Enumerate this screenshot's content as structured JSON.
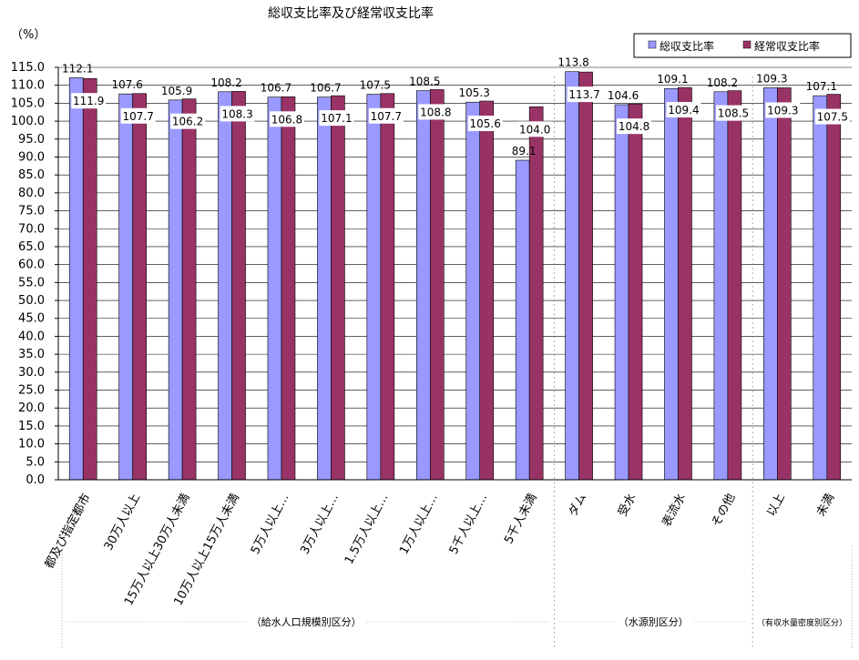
{
  "chart_data": {
    "type": "bar",
    "title": "総収支比率及び経常収支比率",
    "ylabel": "（%）",
    "ylim": [
      0,
      115
    ],
    "yticks": [
      "0.0",
      "5.0",
      "10.0",
      "15.0",
      "20.0",
      "25.0",
      "30.0",
      "35.0",
      "40.0",
      "45.0",
      "50.0",
      "55.0",
      "60.0",
      "65.0",
      "70.0",
      "75.0",
      "80.0",
      "85.0",
      "90.0",
      "95.0",
      "100.0",
      "105.0",
      "110.0",
      "115.0"
    ],
    "grid": true,
    "legend_position": "top-right",
    "categories": [
      "都及び指定都市",
      "30万人以上",
      "15万人以上30万人未満",
      "10万人以上15万人未満",
      "5万人以上…",
      "3万人以上…",
      "1.5万人以上…",
      "1万人以上…",
      "5千人以上…",
      "5千人未満",
      "ダム",
      "受水",
      "表流水",
      "その他",
      "以上",
      "未満"
    ],
    "series": [
      {
        "name": "総収支比率",
        "color": "#9999FF",
        "values": [
          112.1,
          107.6,
          105.9,
          108.2,
          106.7,
          106.7,
          107.5,
          108.5,
          105.3,
          89.1,
          113.8,
          104.6,
          109.1,
          108.2,
          109.3,
          107.1
        ],
        "labels": [
          "112.1",
          "107.6",
          "105.9",
          "108.2",
          "106.7",
          "106.7",
          "107.5",
          "108.5",
          "105.3",
          "89.1",
          "113.8",
          "104.6",
          "109.1",
          "108.2",
          "109.3",
          "107.1"
        ]
      },
      {
        "name": "経常収支比率",
        "color": "#993366",
        "values": [
          111.9,
          107.7,
          106.2,
          108.3,
          106.8,
          107.1,
          107.7,
          108.8,
          105.6,
          104.0,
          113.7,
          104.8,
          109.4,
          108.5,
          109.3,
          107.5
        ],
        "labels": [
          "111.9",
          "107.7",
          "106.2",
          "108.3",
          "106.8",
          "107.1",
          "107.7",
          "108.8",
          "105.6",
          "104.0",
          "113.7",
          "104.8",
          "109.4",
          "108.5",
          "109.3",
          "107.5"
        ]
      }
    ],
    "groups": [
      {
        "label": "（給水人口規模別区分）",
        "count": 10
      },
      {
        "label": "（水源別区分）",
        "count": 4
      },
      {
        "label": "（有収水量密度別区分）",
        "count": 2
      }
    ]
  }
}
